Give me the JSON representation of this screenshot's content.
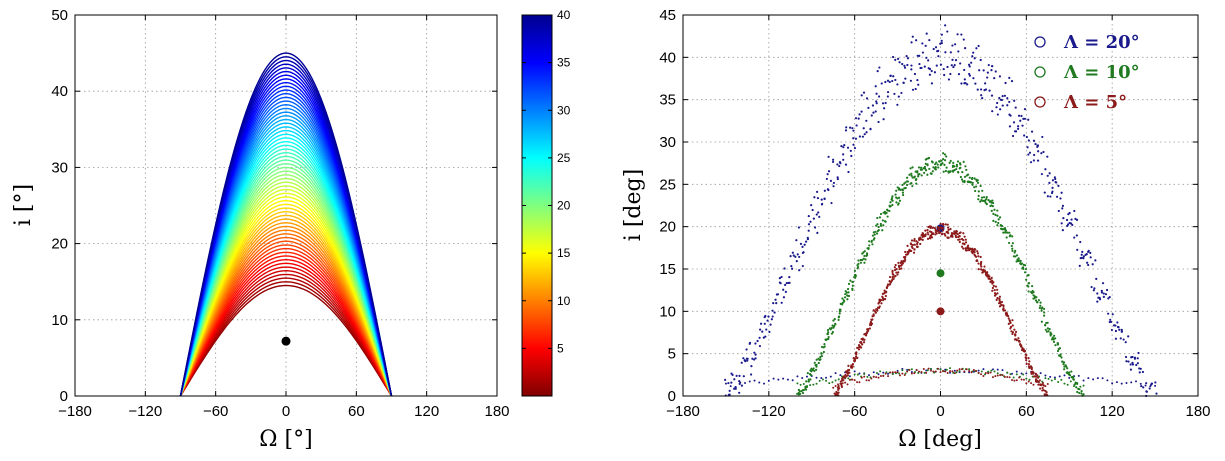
{
  "colors": {
    "blue": "#1a1a8c",
    "green": "#1f7a1f",
    "red": "#8c1a1a",
    "marker": "#000000"
  },
  "chart_data": [
    {
      "type": "line",
      "xlabel": "Ω [°]",
      "ylabel": "i [°]",
      "xlim": [
        -180,
        180
      ],
      "ylim": [
        0,
        50
      ],
      "xticks": [
        -180,
        -120,
        -60,
        0,
        60,
        120,
        180
      ],
      "yticks": [
        0,
        10,
        20,
        30,
        40,
        50
      ],
      "grid": true,
      "curves": {
        "x_range": [
          -90,
          90
        ],
        "peak_min": 14.5,
        "peak_max": 45,
        "count": 64,
        "shape": "i = peak · cos(Ω)"
      },
      "colorbar": {
        "range": [
          0,
          40
        ],
        "ticks": [
          5,
          10,
          15,
          20,
          25,
          30,
          35,
          40
        ],
        "colormap": "jet_reversed"
      },
      "marker": {
        "x": 0,
        "y": 7.2
      }
    },
    {
      "type": "scatter",
      "xlabel": "Ω [deg]",
      "ylabel": "i [deg]",
      "xlim": [
        -180,
        180
      ],
      "ylim": [
        0,
        45
      ],
      "xticks": [
        -180,
        -120,
        -60,
        0,
        60,
        120,
        180
      ],
      "yticks": [
        0,
        5,
        10,
        15,
        20,
        25,
        30,
        35,
        40,
        45
      ],
      "grid": true,
      "legend_position": "top-right",
      "series": [
        {
          "name": "Λ = 20°",
          "color_key": "blue",
          "peak": 42,
          "half_width": 150,
          "spread": 3.5,
          "center": {
            "x": 0,
            "y": 19.8
          }
        },
        {
          "name": "Λ = 10°",
          "color_key": "green",
          "peak": 28,
          "half_width": 100,
          "spread": 1.2,
          "center": {
            "x": 0,
            "y": 14.5
          }
        },
        {
          "name": "Λ = 5°",
          "color_key": "red",
          "peak": 20,
          "half_width": 75,
          "spread": 0.8,
          "center": {
            "x": 0,
            "y": 10
          }
        }
      ]
    }
  ]
}
